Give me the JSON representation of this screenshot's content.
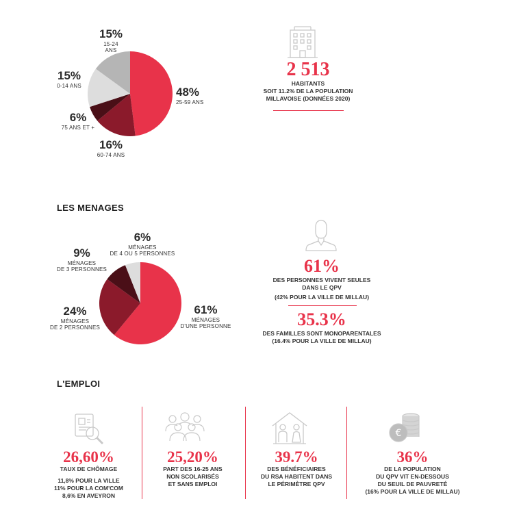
{
  "colors": {
    "red": "#e8334a",
    "dark_red": "#8b1a2b",
    "darker_red": "#4a0f17",
    "light_gray": "#dddddd",
    "mid_gray": "#b5b5b5",
    "icon_gray": "#c9c9c9"
  },
  "age_chart": {
    "slices": [
      {
        "pct": "48%",
        "label": "25-59 ANS"
      },
      {
        "pct": "16%",
        "label": "60-74 ANS"
      },
      {
        "pct": "6%",
        "label": "75 ANS ET +"
      },
      {
        "pct": "15%",
        "label": "0-14 ANS"
      },
      {
        "pct": "15%",
        "label": "15-24 ANS"
      }
    ]
  },
  "population": {
    "icon": "building-icon",
    "number": "2 513",
    "line1": "HABITANTS",
    "line2": "SOIT 11.2% DE LA POPULATION",
    "line3": "MILLAVOISE (DONNÉES 2020)"
  },
  "menages": {
    "title": "LES MENAGES",
    "slices": [
      {
        "pct": "61%",
        "line1": "MÉNAGES",
        "line2": "D'UNE PERSONNE"
      },
      {
        "pct": "24%",
        "line1": "MÉNAGES",
        "line2": "DE 2 PERSONNES"
      },
      {
        "pct": "9%",
        "line1": "MÉNAGES",
        "line2": "DE 3 PERSONNES"
      },
      {
        "pct": "6%",
        "line1": "MÉNAGES",
        "line2": "DE 4 OU 5 PERSONNES"
      }
    ],
    "stat1": {
      "icon": "person-icon",
      "number": "61%",
      "line1": "DES PERSONNES VIVENT SEULES",
      "line2": "DANS LE QPV",
      "line3": "(42% POUR LA VILLE DE MILLAU)"
    },
    "stat2": {
      "number": "35.3%",
      "line1": "DES FAMILLES SONT MONOPARENTALES",
      "line2": "(16.4% POUR LA VILLE DE MILLAU)"
    }
  },
  "chart_data": [
    {
      "type": "pie",
      "categories": [
        "25-59 ANS",
        "60-74 ANS",
        "75 ANS ET +",
        "0-14 ANS",
        "15-24 ANS"
      ],
      "values": [
        48,
        16,
        6,
        15,
        15
      ],
      "colors": [
        "#e8334a",
        "#8b1a2b",
        "#4a0f17",
        "#dddddd",
        "#b5b5b5"
      ]
    },
    {
      "type": "pie",
      "categories": [
        "MÉNAGES D'UNE PERSONNE",
        "MÉNAGES DE 2 PERSONNES",
        "MÉNAGES DE 3 PERSONNES",
        "MÉNAGES DE 4 OU 5 PERSONNES"
      ],
      "values": [
        61,
        24,
        9,
        6
      ],
      "colors": [
        "#e8334a",
        "#8b1a2b",
        "#4a0f17",
        "#dddddd"
      ]
    }
  ],
  "emploi": {
    "title": "L'EMPLOI",
    "stats": [
      {
        "icon": "cv-magnifier-icon",
        "number": "26,60%",
        "lines": [
          "TAUX DE CHÔMAGE",
          "",
          "11,8% POUR LA VILLE",
          "11% POUR LA COM'COM",
          "8,6% EN AVEYRON"
        ]
      },
      {
        "icon": "group-icon",
        "number": "25,20%",
        "lines": [
          "PART DES 16-25 ANS",
          "NON SCOLARISÉS",
          "ET SANS EMPLOI"
        ]
      },
      {
        "icon": "family-house-icon",
        "number": "39.7%",
        "lines": [
          "DES BÉNÉFICIAIRES",
          "DU RSA HABITENT DANS",
          "LE PÉRIMÈTRE QPV"
        ]
      },
      {
        "icon": "euro-coins-icon",
        "number": "36%",
        "lines": [
          "DE LA POPULATION",
          "DU QPV VIT EN-DESSOUS",
          "DU SEUIL DE PAUVRETÉ",
          "(16% POUR LA VILLE DE MILLAU)"
        ]
      }
    ]
  }
}
